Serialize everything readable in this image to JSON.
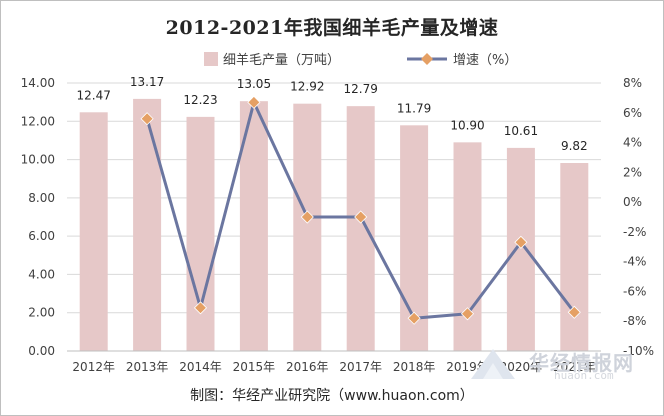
{
  "title": "2012-2021年我国细羊毛产量及增速",
  "source": "制图：华经产业研究院（www.huaon.com）",
  "watermark": {
    "name": "华经情报网",
    "url": "huaon.com"
  },
  "colors": {
    "bar": "#e6c8c8",
    "line": "#6b76a0",
    "marker": "#e5a064",
    "grid": "#d9d9d9"
  },
  "chart_data": {
    "type": "bar",
    "categories": [
      "2012年",
      "2013年",
      "2014年",
      "2015年",
      "2016年",
      "2017年",
      "2018年",
      "2019年",
      "2020年",
      "2021年"
    ],
    "series": [
      {
        "name": "细羊毛产量（万吨）",
        "type": "bar",
        "axis": "left",
        "values": [
          12.47,
          13.17,
          12.23,
          13.05,
          12.92,
          12.79,
          11.79,
          10.9,
          10.61,
          9.82
        ]
      },
      {
        "name": "增速（%）",
        "type": "line",
        "axis": "right",
        "values": [
          null,
          5.6,
          -7.1,
          6.7,
          -1.0,
          -1.0,
          -7.8,
          -7.5,
          -2.7,
          -7.4
        ]
      }
    ],
    "y_left": {
      "min": 0,
      "max": 14,
      "step": 2,
      "ticks": [
        "0.00",
        "2.00",
        "4.00",
        "6.00",
        "8.00",
        "10.00",
        "12.00",
        "14.00"
      ]
    },
    "y_right": {
      "min": -10,
      "max": 8,
      "step": 2,
      "ticks": [
        "-10%",
        "-8%",
        "-6%",
        "-4%",
        "-2%",
        "0%",
        "2%",
        "4%",
        "6%",
        "8%"
      ]
    },
    "data_labels": [
      "12.47",
      "13.17",
      "12.23",
      "13.05",
      "12.92",
      "12.79",
      "11.79",
      "10.90",
      "10.61",
      "9.82"
    ],
    "legend": {
      "position": "top-center",
      "entries": [
        "细羊毛产量（万吨）",
        "增速（%）"
      ]
    },
    "grid": true
  }
}
